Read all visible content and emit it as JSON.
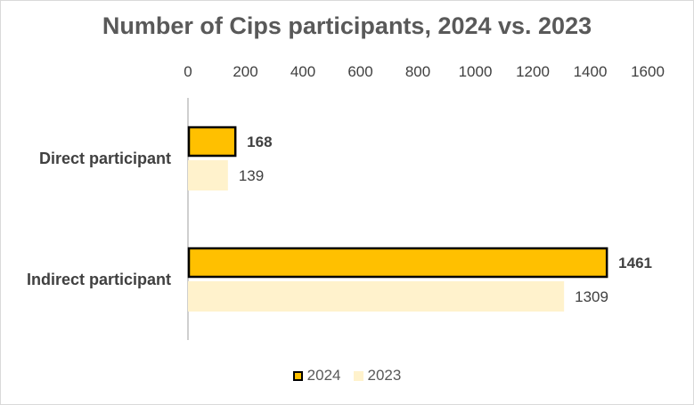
{
  "chart_data": {
    "type": "bar",
    "orientation": "horizontal",
    "title": "Number of Cips participants, 2024 vs. 2023",
    "categories": [
      "Direct participant",
      "Indirect participant"
    ],
    "series": [
      {
        "name": "2024",
        "values": [
          168,
          1461
        ],
        "color": "#ffc000",
        "border": "#000000",
        "label_bold": true
      },
      {
        "name": "2023",
        "values": [
          139,
          1309
        ],
        "color": "#fff2cc",
        "border": "none",
        "label_bold": false
      }
    ],
    "xlim": [
      0,
      1600
    ],
    "xticks": [
      "0",
      "200",
      "400",
      "600",
      "800",
      "1000",
      "1200",
      "1400",
      "1600"
    ],
    "x_axis_position": "top",
    "grid": false,
    "legend_position": "bottom"
  }
}
